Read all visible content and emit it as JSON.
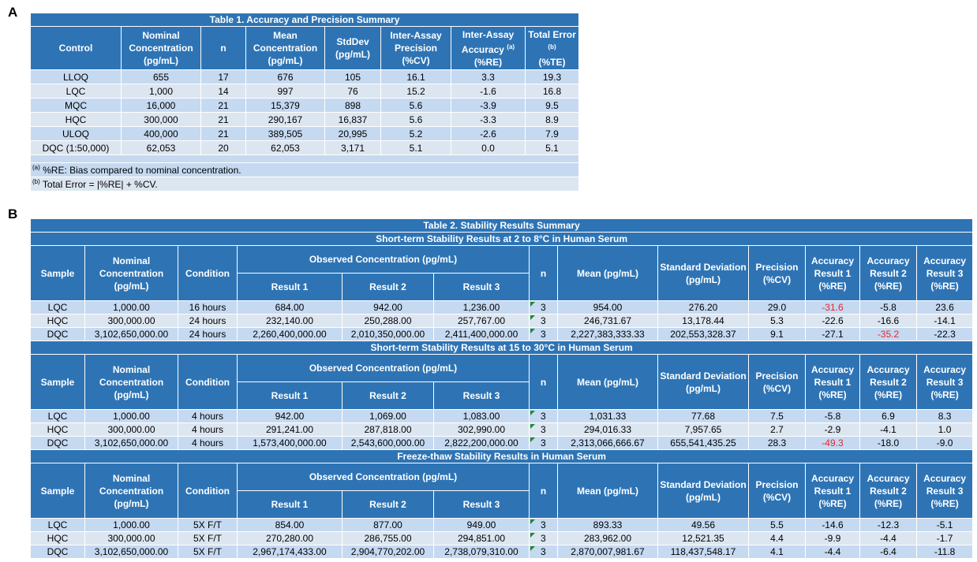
{
  "panel_a": {
    "letter": "A",
    "table": {
      "title": "Table 1. Accuracy and Precision Summary",
      "headers": [
        "Control",
        "Nominal Concentration (pg/mL)",
        "n",
        "Mean Concentration (pg/mL)",
        "StdDev (pg/mL)",
        "Inter-Assay Precision (%CV)",
        {
          "text": "Inter-Assay Accuracy",
          "sup": "(a)",
          "tail": "(%RE)"
        },
        {
          "text": "Total Error",
          "sup": "(b)",
          "tail": "(%TE)"
        }
      ],
      "rows": [
        [
          "LLOQ",
          "655",
          "17",
          "676",
          "105",
          "16.1",
          "3.3",
          "19.3"
        ],
        [
          "LQC",
          "1,000",
          "14",
          "997",
          "76",
          "15.2",
          "-1.6",
          "16.8"
        ],
        [
          "MQC",
          "16,000",
          "21",
          "15,379",
          "898",
          "5.6",
          "-3.9",
          "9.5"
        ],
        [
          "HQC",
          "300,000",
          "21",
          "290,167",
          "16,837",
          "5.6",
          "-3.3",
          "8.9"
        ],
        [
          "ULOQ",
          "400,000",
          "21",
          "389,505",
          "20,995",
          "5.2",
          "-2.6",
          "7.9"
        ],
        [
          "DQC (1:50,000)",
          "62,053",
          "20",
          "62,053",
          "3,171",
          "5.1",
          "0.0",
          "5.1"
        ]
      ],
      "footnotes": [
        {
          "mark": "(a)",
          "text": "%RE: Bias compared to nominal concentration."
        },
        {
          "mark": "(b)",
          "text": "Total Error = |%RE| + %CV."
        }
      ]
    }
  },
  "panel_b": {
    "letter": "B",
    "table": {
      "title": "Table 2. Stability Results Summary",
      "flag_color": "#e8262a",
      "sections": [
        {
          "title": "Short-term Stability Results at 2 to 8°C in Human Serum",
          "headers": [
            "Sample",
            "Nominal Concentration (pg/mL)",
            "Condition",
            "Observed Concentration (pg/mL)",
            "n",
            "Mean (pg/mL)",
            "Standard Deviation (pg/mL)",
            "Precision (%CV)",
            "Accuracy Result 1 (%RE)",
            "Accuracy Result 2 (%RE)",
            "Accuracy Result 3 (%RE)"
          ],
          "subheaders": [
            "Result 1",
            "Result 2",
            "Result 3"
          ],
          "rows": [
            [
              "LQC",
              "1,000.00",
              "16 hours",
              "684.00",
              "942.00",
              "1,236.00",
              "3",
              "954.00",
              "276.20",
              "29.0",
              "-31.6",
              "-5.8",
              "23.6"
            ],
            [
              "HQC",
              "300,000.00",
              "24 hours",
              "232,140.00",
              "250,288.00",
              "257,767.00",
              "3",
              "246,731.67",
              "13,178.44",
              "5.3",
              "-22.6",
              "-16.6",
              "-14.1"
            ],
            [
              "DQC",
              "3,102,650,000.00",
              "24 hours",
              "2,260,400,000.00",
              "2,010,350,000.00",
              "2,411,400,000.00",
              "3",
              "2,227,383,333.33",
              "202,553,328.37",
              "9.1",
              "-27.1",
              "-35.2",
              "-22.3"
            ]
          ],
          "flagged": [
            [
              0,
              10
            ],
            [
              2,
              11
            ]
          ]
        },
        {
          "title": "Short-term Stability Results at 15 to 30°C in Human Serum",
          "headers": [
            "Sample",
            "Nominal Concentration (pg/mL)",
            "Condition",
            "Observed Concentration (pg/mL)",
            "n",
            "Mean (pg/mL)",
            "Standard Deviation (pg/mL)",
            "Precision (%CV)",
            "Accuracy Result 1 (%RE)",
            "Accuracy Result 2 (%RE)",
            "Accuracy Result 3 (%RE)"
          ],
          "subheaders": [
            "Result 1",
            "Result 2",
            "Result 3"
          ],
          "rows": [
            [
              "LQC",
              "1,000.00",
              "4 hours",
              "942.00",
              "1,069.00",
              "1,083.00",
              "3",
              "1,031.33",
              "77.68",
              "7.5",
              "-5.8",
              "6.9",
              "8.3"
            ],
            [
              "HQC",
              "300,000.00",
              "4 hours",
              "291,241.00",
              "287,818.00",
              "302,990.00",
              "3",
              "294,016.33",
              "7,957.65",
              "2.7",
              "-2.9",
              "-4.1",
              "1.0"
            ],
            [
              "DQC",
              "3,102,650,000.00",
              "4 hours",
              "1,573,400,000.00",
              "2,543,600,000.00",
              "2,822,200,000.00",
              "3",
              "2,313,066,666.67",
              "655,541,435.25",
              "28.3",
              "-49.3",
              "-18.0",
              "-9.0"
            ]
          ],
          "flagged": [
            [
              2,
              10
            ]
          ]
        },
        {
          "title": "Freeze-thaw Stability Results in Human Serum",
          "headers": [
            "Sample",
            "Nominal Concentration (pg/mL)",
            "Condition",
            "Observed Concentration (pg/mL)",
            "n",
            "Mean (pg/mL)",
            "Standard Deviation (pg/mL)",
            "Precision (%CV)",
            "Accuracy Result 1 (%RE)",
            "Accuracy Result 2 (%RE)",
            "Accuracy Result 3 (%RE)"
          ],
          "subheaders": [
            "Result 1",
            "Result 2",
            "Result 3"
          ],
          "rows": [
            [
              "LQC",
              "1,000.00",
              "5X F/T",
              "854.00",
              "877.00",
              "949.00",
              "3",
              "893.33",
              "49.56",
              "5.5",
              "-14.6",
              "-12.3",
              "-5.1"
            ],
            [
              "HQC",
              "300,000.00",
              "5X F/T",
              "270,280.00",
              "286,755.00",
              "294,851.00",
              "3",
              "283,962.00",
              "12,521.35",
              "4.4",
              "-9.9",
              "-4.4",
              "-1.7"
            ],
            [
              "DQC",
              "3,102,650,000.00",
              "5X F/T",
              "2,967,174,433.00",
              "2,904,770,202.00",
              "2,738,079,310.00",
              "3",
              "2,870,007,981.67",
              "118,437,548.17",
              "4.1",
              "-4.4",
              "-6.4",
              "-11.8"
            ]
          ],
          "flagged": []
        }
      ]
    }
  }
}
